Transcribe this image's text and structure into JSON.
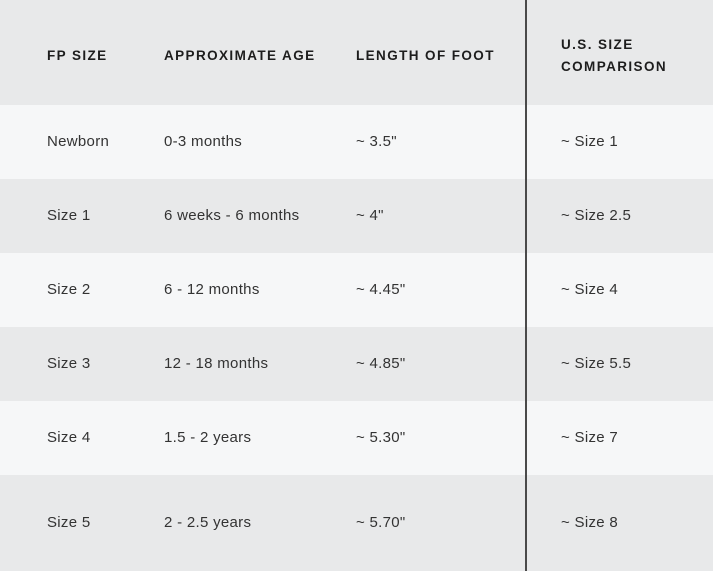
{
  "chart_data": {
    "type": "table",
    "title": "",
    "columns": [
      "FP SIZE",
      "APPROXIMATE AGE",
      "LENGTH OF FOOT",
      "U.S. SIZE COMPARISON"
    ],
    "rows": [
      [
        "Newborn",
        "0-3 months",
        "~ 3.5\"",
        "~ Size 1"
      ],
      [
        "Size 1",
        "6 weeks - 6 months",
        "~ 4\"",
        "~ Size 2.5"
      ],
      [
        "Size 2",
        "6 - 12 months",
        "~ 4.45\"",
        "~ Size 4"
      ],
      [
        "Size 3",
        "12 - 18 months",
        "~ 4.85\"",
        "~ Size 5.5"
      ],
      [
        "Size 4",
        "1.5 - 2 years",
        "~ 5.30\"",
        "~ Size 7"
      ],
      [
        "Size 5",
        "2 - 2.5 years",
        "~ 5.70\"",
        "~ Size 8"
      ]
    ],
    "layout": {
      "striped": true,
      "stripe_pattern": "header gray, then alternating light/gray starting light",
      "vertical_divider_before_column": "U.S. SIZE COMPARISON"
    }
  },
  "colors": {
    "row_gray": "#e8e9ea",
    "row_light": "#f6f7f8",
    "divider": "#4a4a4a",
    "header_text": "#1d1d1d",
    "body_text": "#333333"
  }
}
